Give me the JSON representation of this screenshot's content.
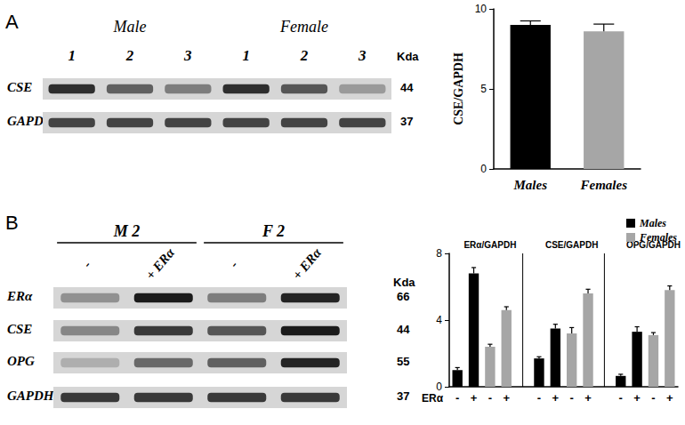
{
  "panel_labels": [
    "A",
    "B"
  ],
  "blots": [
    {
      "groups": [
        {
          "label": "Male",
          "lanes": [
            "1",
            "2",
            "3"
          ]
        },
        {
          "label": "Female",
          "lanes": [
            "1",
            "2",
            "3"
          ]
        }
      ],
      "unit": "Kda",
      "rows": [
        {
          "label": "CSE",
          "kda": 44,
          "bands": [
            0.85,
            0.6,
            0.45,
            0.85,
            0.65,
            0.3
          ]
        },
        {
          "label": "GAPDH",
          "kda": 37,
          "bands": [
            0.75,
            0.75,
            0.75,
            0.75,
            0.75,
            0.75
          ]
        }
      ]
    },
    {
      "groups": [
        {
          "label": "M 2",
          "lanes": [
            "-",
            "+ ERα"
          ]
        },
        {
          "label": "F 2",
          "lanes": [
            "-",
            "+ ERα"
          ]
        }
      ],
      "unit": "Kda",
      "rows": [
        {
          "label": "ERα",
          "kda": 66,
          "bands": [
            0.35,
            0.95,
            0.45,
            0.9
          ]
        },
        {
          "label": "CSE",
          "kda": 44,
          "bands": [
            0.4,
            0.8,
            0.65,
            0.95
          ]
        },
        {
          "label": "OPG",
          "kda": 55,
          "bands": [
            0.2,
            0.55,
            0.6,
            0.9
          ]
        },
        {
          "label": "GAPDH",
          "kda": 37,
          "bands": [
            0.8,
            0.8,
            0.8,
            0.8
          ]
        }
      ]
    }
  ],
  "chart_data": [
    {
      "type": "bar",
      "categories": [
        "Males",
        "Females"
      ],
      "values": [
        9.0,
        8.6
      ],
      "errors": [
        0.25,
        0.45
      ],
      "colors": [
        "#000000",
        "#a6a6a6"
      ],
      "y_label": "CSE/GAPDH",
      "ylim": [
        0,
        10
      ],
      "yticks": [
        0,
        5,
        10
      ],
      "grid": false
    },
    {
      "type": "bar",
      "annotations": [
        "ERα/GAPDH",
        "CSE/GAPDH",
        "OPG/GAPDH"
      ],
      "x_label": "ERα",
      "categories": [
        "-",
        "+",
        "-",
        "+",
        null,
        "-",
        "+",
        "-",
        "+",
        null,
        "-",
        "+",
        "-",
        "+"
      ],
      "series": [
        {
          "name": "Males",
          "color": "#000000",
          "values": [
            1.0,
            6.8,
            null,
            null,
            null,
            1.7,
            3.5,
            null,
            null,
            null,
            0.65,
            3.3,
            null,
            null
          ],
          "errors": [
            0.15,
            0.35,
            null,
            null,
            null,
            0.1,
            0.25,
            null,
            null,
            null,
            0.1,
            0.3,
            null,
            null
          ]
        },
        {
          "name": "Females",
          "color": "#a6a6a6",
          "values": [
            null,
            null,
            2.4,
            4.6,
            null,
            null,
            null,
            3.2,
            5.6,
            null,
            null,
            null,
            3.1,
            5.8
          ],
          "errors": [
            null,
            null,
            0.15,
            0.2,
            null,
            null,
            null,
            0.35,
            0.25,
            null,
            null,
            null,
            0.15,
            0.25
          ]
        }
      ],
      "legend": "upper right",
      "ylim": [
        0,
        8
      ],
      "yticks": [
        0,
        4,
        8
      ],
      "grid": false
    }
  ]
}
